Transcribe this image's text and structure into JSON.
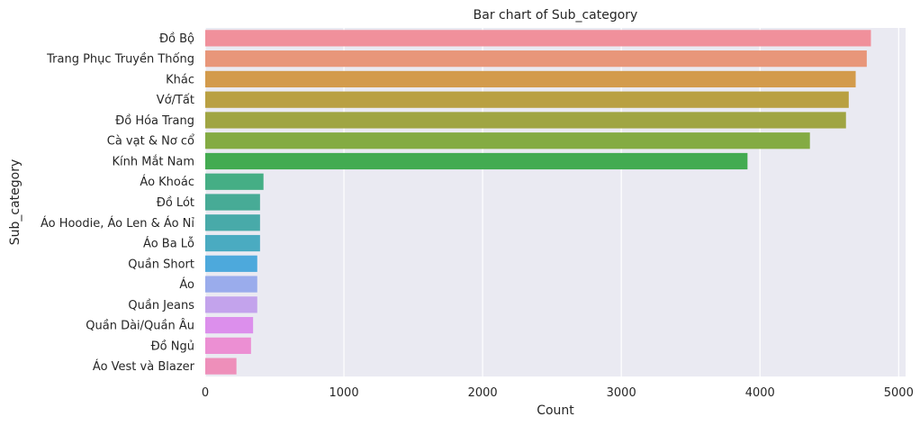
{
  "chart_data": {
    "type": "bar",
    "orientation": "horizontal",
    "title": "Bar chart of Sub_category",
    "xlabel": "Count",
    "ylabel": "Sub_category",
    "xlim": [
      0,
      5050
    ],
    "xticks": [
      0,
      1000,
      2000,
      3000,
      4000,
      5000
    ],
    "grid": true,
    "categories": [
      "Đồ Bộ",
      "Trang Phục Truyền Thống",
      "Khác",
      "Vớ/Tất",
      "Đồ Hóa Trang",
      "Cà vạt & Nơ cổ",
      "Kính Mắt Nam",
      "Áo Khoác",
      "Đồ Lót",
      "Áo Hoodie, Áo Len & Áo Nỉ",
      "Áo Ba Lỗ",
      "Quần Short",
      "Áo",
      "Quần Jeans",
      "Quần Dài/Quần Âu",
      "Đồ Ngủ",
      "Áo Vest và Blazer"
    ],
    "values": [
      4800,
      4770,
      4690,
      4640,
      4620,
      4360,
      3910,
      420,
      395,
      395,
      395,
      375,
      375,
      375,
      345,
      330,
      225
    ],
    "colors": [
      "#f0909b",
      "#e8967a",
      "#d39b4c",
      "#b9a042",
      "#a0a543",
      "#84ab43",
      "#43ab51",
      "#45ae85",
      "#47ab96",
      "#48aaa9",
      "#4aabc1",
      "#4da9dc",
      "#9aacec",
      "#c3a3ec",
      "#dc8fec",
      "#ec8fd3",
      "#ee8fba"
    ],
    "background": "#eaeaf2",
    "grid_color": "#ffffff"
  }
}
